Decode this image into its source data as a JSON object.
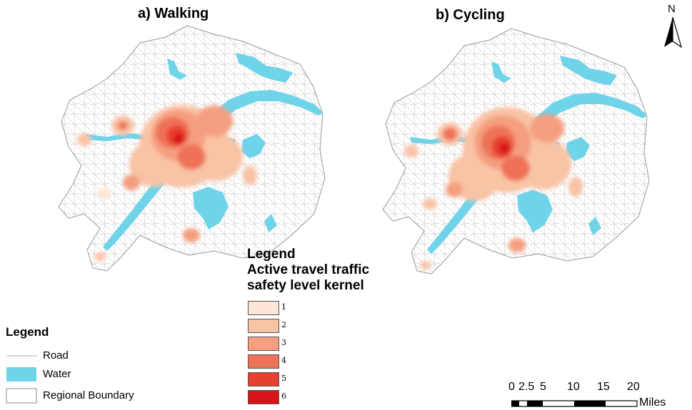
{
  "panels": {
    "walking_title": "a) Walking",
    "cycling_title": "b) Cycling"
  },
  "north_arrow": {
    "label": "N"
  },
  "kernel_legend": {
    "heading": "Legend",
    "title_line1": "Active travel traffic",
    "title_line2": "safety level kernel",
    "classes": [
      {
        "label": "1",
        "color": "#fde6d6"
      },
      {
        "label": "2",
        "color": "#f9c3a6"
      },
      {
        "label": "3",
        "color": "#f59f80"
      },
      {
        "label": "4",
        "color": "#ee7258"
      },
      {
        "label": "5",
        "color": "#e6402e"
      },
      {
        "label": "6",
        "color": "#d9131a"
      }
    ]
  },
  "map_legend": {
    "heading": "Legend",
    "items": [
      {
        "label": "Road",
        "color": "#c8c8c8",
        "icon": "road-line-icon"
      },
      {
        "label": "Water",
        "color": "#6fd3ea",
        "icon": "water-swatch-icon"
      },
      {
        "label": "Regional Boundary",
        "color": "#888888",
        "icon": "boundary-swatch-icon"
      }
    ]
  },
  "scale_bar": {
    "ticks": [
      "0",
      "2.5",
      "5",
      "10",
      "15",
      "20"
    ],
    "units": "Miles"
  },
  "colors": {
    "water": "#6fd3ea",
    "boundary": "#9a9a9a",
    "road": "#d0d0d0"
  }
}
